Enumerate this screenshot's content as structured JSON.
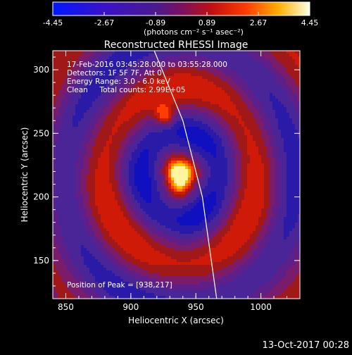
{
  "colorbar": {
    "ticks": [
      "-4.45",
      "-2.67",
      "-0.89",
      "0.89",
      "2.67",
      "4.45"
    ],
    "min": -4.45,
    "max": 4.45,
    "unit_label": "(photons cm⁻² s⁻¹ asec⁻²)"
  },
  "chart_data": {
    "type": "heatmap",
    "title": "Reconstructed RHESSI Image",
    "xlabel": "Heliocentric X (arcsec)",
    "ylabel": "Heliocentric Y (arcsec)",
    "xlim": [
      840,
      1030
    ],
    "ylim": [
      120,
      315
    ],
    "x_ticks": [
      "850",
      "900",
      "950",
      "1000"
    ],
    "y_ticks": [
      "150",
      "200",
      "250",
      "300"
    ],
    "peak": {
      "x": 938,
      "y": 217
    },
    "second_source": {
      "x": 926,
      "y": 264
    },
    "annotations": [
      "17-Feb-2016 03:45:28.000 to 03:55:28.000",
      "Detectors: 1F 5F 7F, Att 0",
      "Energy Range: 3.0 - 6.0 keV",
      "Clean     Total counts: 2.99E+05"
    ],
    "peak_label": "Position of Peak = [938,217]",
    "limb_curve": [
      [
        918,
        315
      ],
      [
        940,
        260
      ],
      [
        955,
        200
      ],
      [
        966,
        120
      ]
    ]
  },
  "timestamp": "13-Oct-2017 00:28"
}
